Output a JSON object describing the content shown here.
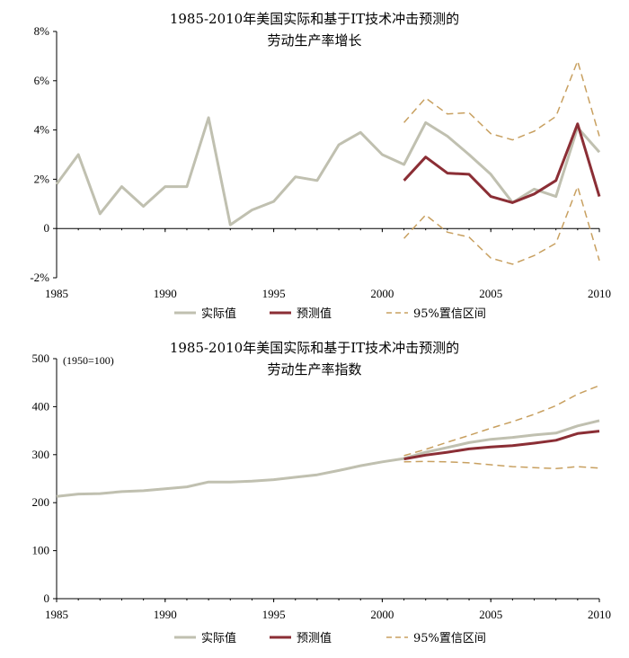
{
  "colors": {
    "actual": "#c0c0b0",
    "forecast": "#8b2e35",
    "ci": "#c8a060",
    "axis": "#000000"
  },
  "chart_data": [
    {
      "type": "line",
      "title": [
        "1985-2010年美国实际和基于IT技术冲击预测的",
        "劳动生产率增长"
      ],
      "xlim": [
        1985,
        2010
      ],
      "ylim": [
        -2,
        8
      ],
      "xticks": [
        1985,
        1990,
        1995,
        2000,
        2005,
        2010
      ],
      "yticks": [
        -2,
        0,
        2,
        4,
        6,
        8
      ],
      "ytick_labels": [
        "-2%",
        "0",
        "2%",
        "4%",
        "6%",
        "8%"
      ],
      "series": [
        {
          "name": "实际值",
          "key": "actual",
          "dash": false,
          "x": [
            1985,
            1986,
            1987,
            1988,
            1989,
            1990,
            1991,
            1992,
            1993,
            1994,
            1995,
            1996,
            1997,
            1998,
            1999,
            2000,
            2001,
            2002,
            2003,
            2004,
            2005,
            2006,
            2007,
            2008,
            2009,
            2010
          ],
          "values": [
            1.8,
            3.0,
            0.6,
            1.7,
            0.9,
            1.7,
            1.7,
            4.5,
            0.15,
            0.75,
            1.1,
            2.1,
            1.95,
            3.4,
            3.9,
            3.0,
            2.6,
            4.3,
            3.75,
            3.0,
            2.2,
            1.05,
            1.6,
            1.3,
            4.1,
            3.1
          ]
        },
        {
          "name": "预测值",
          "key": "forecast",
          "dash": false,
          "x": [
            2001,
            2002,
            2003,
            2004,
            2005,
            2006,
            2007,
            2008,
            2009,
            2010
          ],
          "values": [
            1.95,
            2.9,
            2.25,
            2.2,
            1.3,
            1.05,
            1.4,
            1.95,
            4.25,
            1.3
          ]
        },
        {
          "name": "95%置信区间",
          "key": "ci",
          "dash": true,
          "x": [
            2001,
            2002,
            2003,
            2004,
            2005,
            2006,
            2007,
            2008,
            2009,
            2010
          ],
          "values": [
            4.3,
            5.3,
            4.65,
            4.7,
            3.85,
            3.6,
            3.95,
            4.55,
            6.8,
            3.75
          ]
        },
        {
          "name": "95%置信区间",
          "key": "ci",
          "dash": true,
          "hide_legend": true,
          "x": [
            2001,
            2002,
            2003,
            2004,
            2005,
            2006,
            2007,
            2008,
            2009,
            2010
          ],
          "values": [
            -0.4,
            0.55,
            -0.15,
            -0.35,
            -1.2,
            -1.45,
            -1.1,
            -0.6,
            1.7,
            -1.3
          ]
        }
      ],
      "legend": [
        "实际值",
        "预测值",
        "95%置信区间"
      ]
    },
    {
      "type": "line",
      "title": [
        "1985-2010年美国实际和基于IT技术冲击预测的",
        "劳动生产率指数"
      ],
      "note": "(1950=100)",
      "xlim": [
        1985,
        2010
      ],
      "ylim": [
        0,
        500
      ],
      "xticks": [
        1985,
        1990,
        1995,
        2000,
        2005,
        2010
      ],
      "yticks": [
        0,
        100,
        200,
        300,
        400,
        500
      ],
      "ytick_labels": [
        "0",
        "100",
        "200",
        "300",
        "400",
        "500"
      ],
      "series": [
        {
          "name": "实际值",
          "key": "actual",
          "dash": false,
          "x": [
            1985,
            1986,
            1987,
            1988,
            1989,
            1990,
            1991,
            1992,
            1993,
            1994,
            1995,
            1996,
            1997,
            1998,
            1999,
            2000,
            2001,
            2002,
            2003,
            2004,
            2005,
            2006,
            2007,
            2008,
            2009,
            2010
          ],
          "values": [
            213,
            218,
            219,
            223,
            225,
            229,
            233,
            243,
            243,
            245,
            248,
            253,
            258,
            267,
            277,
            285,
            292,
            305,
            315,
            325,
            332,
            336,
            341,
            345,
            360,
            371
          ]
        },
        {
          "name": "预测值",
          "key": "forecast",
          "dash": false,
          "x": [
            2001,
            2002,
            2003,
            2004,
            2005,
            2006,
            2007,
            2008,
            2009,
            2010
          ],
          "values": [
            291,
            299,
            305,
            312,
            316,
            319,
            324,
            330,
            344,
            349
          ]
        },
        {
          "name": "95%置信区间",
          "key": "ci",
          "dash": true,
          "x": [
            2001,
            2002,
            2003,
            2004,
            2005,
            2006,
            2007,
            2008,
            2009,
            2010
          ],
          "values": [
            298,
            311,
            326,
            340,
            355,
            369,
            384,
            402,
            426,
            444
          ]
        },
        {
          "name": "95%置信区间",
          "key": "ci",
          "dash": true,
          "hide_legend": true,
          "x": [
            2001,
            2002,
            2003,
            2004,
            2005,
            2006,
            2007,
            2008,
            2009,
            2010
          ],
          "values": [
            285,
            286,
            285,
            283,
            279,
            275,
            273,
            271,
            275,
            272
          ]
        }
      ],
      "legend": [
        "实际值",
        "预测值",
        "95%置信区间"
      ]
    }
  ]
}
